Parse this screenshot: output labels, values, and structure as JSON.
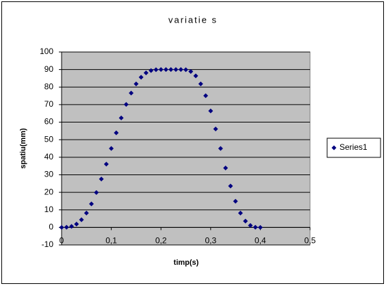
{
  "chart_data": {
    "type": "scatter",
    "title": "variatie s",
    "x_label": "timp(s)",
    "y_label": "spatiu(mm)",
    "series": [
      {
        "name": "Series1",
        "color": "#000080",
        "x": [
          0,
          0.01,
          0.02,
          0.03,
          0.04,
          0.05,
          0.06,
          0.07,
          0.08,
          0.09,
          0.1,
          0.11,
          0.12,
          0.13,
          0.14,
          0.15,
          0.16,
          0.17,
          0.18,
          0.19,
          0.2,
          0.21,
          0.22,
          0.23,
          0.24,
          0.25,
          0.26,
          0.27,
          0.28,
          0.29,
          0.3,
          0.31,
          0.32,
          0.33,
          0.34,
          0.35,
          0.36,
          0.37,
          0.38,
          0.39,
          0.4
        ],
        "values": [
          0,
          0.1,
          0.6,
          1.9,
          4.4,
          8.2,
          13.4,
          19.9,
          27.6,
          36.1,
          45,
          53.9,
          62.4,
          70.1,
          76.6,
          81.8,
          85.6,
          88.1,
          89.4,
          89.9,
          90,
          90,
          90,
          90,
          90,
          89.9,
          88.9,
          86.4,
          81.8,
          75.1,
          66.4,
          56.1,
          45,
          33.9,
          23.6,
          14.9,
          8.2,
          3.6,
          1.1,
          0.1,
          0
        ]
      }
    ],
    "xlim": [
      0,
      0.5
    ],
    "xticks": [
      0,
      {
        "value": 0.1,
        "label": "0,1"
      },
      {
        "value": 0.2,
        "label": "0,2"
      },
      {
        "value": 0.3,
        "label": "0,3"
      },
      {
        "value": 0.4,
        "label": "0,4"
      },
      {
        "value": 0.5,
        "label": "0,5"
      }
    ],
    "ylim": [
      -10,
      100
    ],
    "yticks": [
      -10,
      0,
      10,
      20,
      30,
      40,
      50,
      60,
      70,
      80,
      90,
      100
    ],
    "grid": true,
    "legend": "right",
    "plot_background": "#c0c0c0"
  }
}
